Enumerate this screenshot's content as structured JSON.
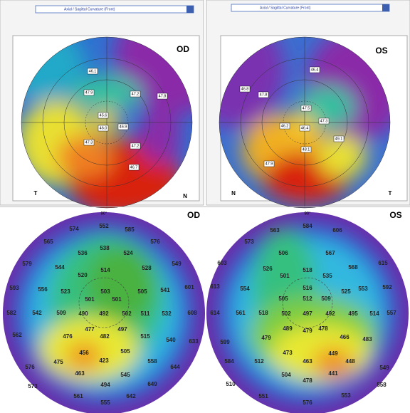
{
  "panels": [
    {
      "dropdown": "Axial / Sagittal Curvature (Front)",
      "eye": "OD",
      "left_label": "T",
      "right_label": "N",
      "labels": [
        "46.1",
        "47.9",
        "47.2",
        "47.8",
        "45.6",
        "46.0",
        "46.9",
        "47.3",
        "47.2",
        "46.7"
      ]
    },
    {
      "dropdown": "Axial / Sagittal Curvature (Front)",
      "eye": "OS",
      "left_label": "N",
      "right_label": "T",
      "labels": [
        "46.4",
        "46.8",
        "47.8",
        "47.5",
        "47.3",
        "46.2",
        "46.4",
        "49.1",
        "47.9",
        "48.1"
      ]
    }
  ],
  "maps": [
    {
      "eye": "OD",
      "top_angle": "90°",
      "values": [
        "574",
        "552",
        "585",
        "565",
        "538",
        "576",
        "536",
        "524",
        "579",
        "544",
        "514",
        "528",
        "549",
        "520",
        "593",
        "556",
        "523",
        "503",
        "505",
        "541",
        "601",
        "501",
        "501",
        "582",
        "542",
        "509",
        "490",
        "492",
        "502",
        "511",
        "532",
        "608",
        "477",
        "497",
        "562",
        "476",
        "482",
        "515",
        "540",
        "633",
        "456",
        "505",
        "475",
        "423",
        "558",
        "576",
        "463",
        "545",
        "644",
        "573",
        "494",
        "649",
        "561",
        "555",
        "642"
      ]
    },
    {
      "eye": "OS",
      "top_angle": "90°",
      "values": [
        "563",
        "584",
        "606",
        "573",
        "506",
        "567",
        "603",
        "526",
        "518",
        "568",
        "615",
        "501",
        "535",
        "613",
        "554",
        "516",
        "525",
        "553",
        "592",
        "505",
        "512",
        "509",
        "614",
        "561",
        "518",
        "502",
        "497",
        "492",
        "495",
        "514",
        "557",
        "489",
        "479",
        "478",
        "599",
        "479",
        "466",
        "483",
        "473",
        "449",
        "512",
        "584",
        "463",
        "448",
        "549",
        "504",
        "441",
        "510",
        "478",
        "558",
        "551",
        "576",
        "553"
      ]
    }
  ]
}
